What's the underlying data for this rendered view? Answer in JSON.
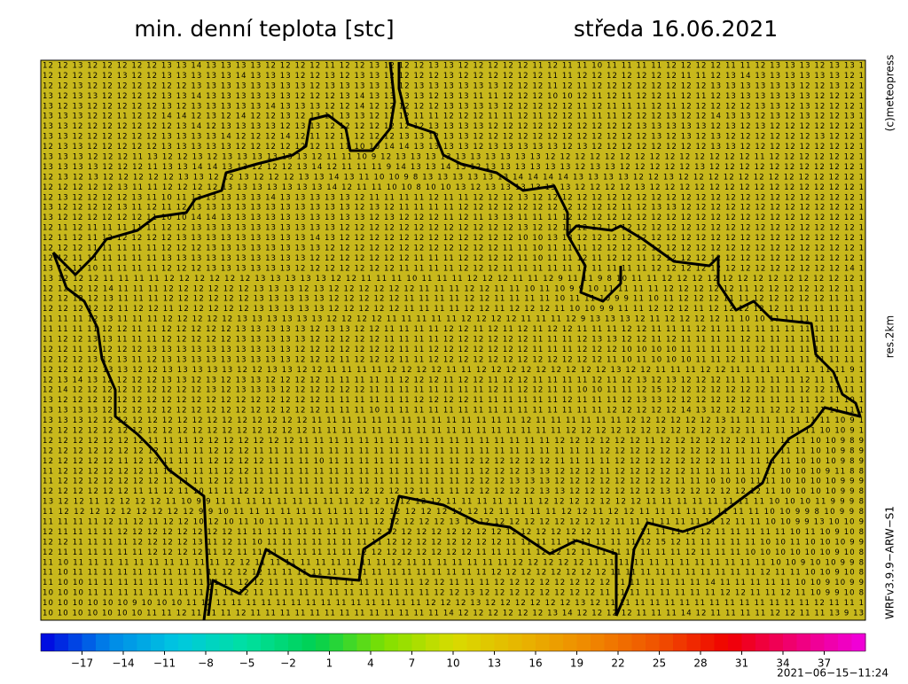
{
  "header": {
    "title": "min. denní teplota [stc]",
    "date": "středa 16.06.2021"
  },
  "side_labels": {
    "copyright": "(c)meteopress",
    "resolution": "res.2km",
    "model": "WRFv3.9.9−ARW−S1"
  },
  "timestamp": "2021−06−15−11:24",
  "map": {
    "background": "#c8b81c",
    "border_color": "#000000",
    "rows": [
      "12 12 13 12 12 12 12 12 13 13 14 13 13 13 13 12 12 12 12 11 12 12 13 12 12 12 13 13 12 12 12 12 12 11 12 11 11 10 11 11 11 11 12 12 12 12 11 11 12 13 13 13 12 13 13 1",
      "12 12 12 12 12 13 12 12 13 13 13 13 13 14 13 13 13 12 12 13 12 13 13 12 12 12 12 13 12 12 12 12 12 12 11 11 12 12 12 12 12 12 12 11 11 12 13 14 13 13 13 13 13 13 12 1",
      "12 12 13 12 12 12 12 12 12 12 13 13 13 13 13 13 13 13 12 13 13 13 13 13 12 13 13 13 13 13 13 12 12 12 11 12 11 12 12 12 12 12 12 12 12 13 13 13 13 13 13 12 12 13 12 1",
      "13 12 13 13 12 12 12 12 13 13 14 13 13 13 13 13 13 12 12 12 13 14 13 13 13 13 12 13 13 11 11 12 12 12 10 10 12 11 12 11 12 12 11 12 11 12 13 13 13 13 13 13 12 12 12 1",
      "13 12 13 12 12 12 12 12 13 12 13 13 13 13 13 14 13 13 13 12 12 14 12 12 12 12 12 13 13 13 13 12 12 12 12 12 11 12 11 11 11 12 11 12 12 12 12 12 13 13 12 13 12 12 12 1",
      "13 13 13 12 12 11 12 12 14 14 12 13 12 14 12 12 13 12 13 11 13 13 12 12 12 11 11 12 12 12 11 11 12 11 12 12 11 11 11 12 12 12 13 12 12 14 13 13 12 13 12 13 12 12 13 1",
      "13 13 12 12 12 12 12 12 12 13 14 12 13 13 13 13 12 13 13 12 12 12 12 12 12 12 13 13 13 13 12 12 12 12 12 12 12 12 12 12 13 13 13 13 13 12 13 12 13 12 12 12 12 12 12 1",
      "13 13 12 12 12 12 12 12 13 13 13 13 14 12 12 12 14 12 11 12 11 12 12 12 13 13 12 13 13 12 12 12 12 12 12 12 12 12 12 12 12 13 12 13 12 13 12 12 12 12 12 12 13 12 12 1",
      "12 13 13 12 12 12 12 12 13 13 13 13 13 12 12 12 12 12 12 11 11 10 10 14 14 13 13 13 13 12 13 13 13 13 13 12 13 12 12 12 12 12 12 12 12 13 13 12 12 12 12 12 12 12 12 1",
      "13 13 13 12 12 12 11 13 12 12 13 12 13 13 13 13 13 13 12 11 11 10 9 12 13 13 13 13 13 13 13 13 13 13 12 12 12 12 12 12 12 12 12 12 12 12 12 12 11 12 12 12 12 12 12 1",
      "13 13 13 13 12 12 12 11 13 13 14 14 13 13 12 12 12 13 14 12 11 11 11 9 14 13 13 14 13 12 13 13 13 13 13 13 12 13 13 12 12 12 12 12 13 12 12 12 12 12 12 12 12 12 12 1",
      "12 13 12 13 12 12 12 12 12 13 13 12 12 13 12 12 12 13 13 14 13 11 10 10 9 8 13 13 13 13 13 13 14 14 14 14 13 13 13 13 12 12 13 12 12 12 12 12 12 12 12 12 12 12 12 1",
      "12 12 12 12 12 13 11 11 12 12 12 12 13 13 13 13 13 13 13 14 12 11 11 10 10 8 10 10 13 12 13 13 13 13 13 13 12 12 12 12 13 12 12 12 12 12 12 12 12 12 12 12 12 12 12 1",
      "12 13 12 12 12 12 13 11 10 11 13 13 13 13 13 14 13 13 13 13 13 12 11 11 11 11 12 11 11 12 12 12 13 12 12 12 12 12 12 12 12 12 12 12 12 12 12 12 12 12 12 12 12 12 12 1",
      "13 12 12 12 12 13 11 12 11 12 13 13 13 13 13 13 13 13 13 13 13 12 13 12 11 11 11 11 12 12 12 12 12 12 12 12 12 12 12 11 12 13 13 12 12 12 12 12 12 12 12 12 12 12 12 1",
      "13 12 12 12 12 12 12 11 10 10 14 14 13 13 13 13 13 13 13 13 13 13 12 13 12 12 12 11 12 11 13 13 11 11 11 12 12 12 12 12 12 12 12 12 12 12 12 12 12 12 12 12 12 12 12 1",
      "12 11 12 11 11 11 11 11 12 12 13 13 13 13 13 13 13 13 13 13 12 12 12 12 12 12 12 12 12 12 12 12 13 12 12 11 12 12 12 12 12 12 12 12 12 12 12 12 12 12 12 12 12 12 12 1",
      "12 11 12 11 12 12 12 12 12 13 13 13 13 13 13 13 13 13 14 13 12 12 12 12 12 12 12 12 12 12 12 12 10 10 13 13 12 12 12 12 12 12 12 12 12 12 12 12 12 12 12 12 12 12 12 1",
      "12 12 12 11 11 11 11 11 12 12 12 13 13 13 13 13 13 13 13 12 12 12 12 12 12 12 12 12 12 12 12 11 11 10 11 11 11 12 12 12 12 12 12 12 12 12 12 12 12 12 12 12 12 12 12 1",
      "12 12 11 11 11 11 11 11 13 13 13 13 13 13 13 13 13 13 12 12 12 12 12 12 12 11 11 11 12 12 12 12 11 10 11 11 12 11 12 12 11 12 12 12 12 12 12 12 12 12 12 12 12 12 12 1",
      "13 12 11 10 11 11 11 11 12 12 12 13 13 13 13 13 13 12 12 12 12 12 12 12 11 11 11 11 12 12 12 11 11 11 11 11 12 11 11 11 11 12 12 12 12 12 12 12 12 12 12 12 12 12 14 1",
      "13 12 12 12 11 11 11 11 12 12 12 12 12 12 13 13 13 13 13 12 12 11 11 11 10 11 11 11 12 12 12 11 11 12 9 11 11 9 8 10 11 11 12 12 12 12 12 12 12 12 12 12 12 12 12 1",
      "12 12 12 12 14 11 11 11 12 12 12 12 12 12 13 13 13 12 13 12 12 12 12 12 12 11 11 11 12 12 11 11 10 11 10 9 9 10 11 11 11 11 12 12 12 12 12 11 12 12 12 12 12 12 11 1",
      "12 12 12 12 13 11 11 11 12 12 12 12 12 12 13 13 13 13 13 12 12 12 12 12 11 11 11 11 12 12 11 11 11 11 10 11 11 10 9 9 11 10 11 12 12 12 11 11 12 12 12 12 12 11 11 1",
      "12 12 12 12 12 11 12 12 11 12 12 12 12 12 13 13 13 13 13 12 12 12 12 12 11 11 11 11 12 12 11 12 12 12 11 10 10 9 9 11 11 12 12 12 11 12 12 12 12 12 11 11 11 11 11 1",
      "11 11 11 12 13 11 11 11 12 12 12 12 12 13 13 13 13 13 13 12 12 12 12 11 11 11 11 11 12 12 12 12 11 11 11 12 9 13 13 13 12 11 12 12 12 12 11 10 10 11 11 11 11 11 11 1",
      "11 11 11 11 12 12 11 11 12 12 12 12 12 13 13 13 13 13 12 13 13 12 12 11 11 11 11 12 12 11 12 11 12 11 12 12 11 11 11 12 12 11 11 11 12 11 11 11 11 11 11 11 11 11 11 1",
      "11 12 12 13 13 11 11 11 12 12 12 12 12 13 13 13 13 13 12 12 12 12 12 11 11 11 11 12 12 12 12 12 12 11 11 11 12 13 13 12 12 11 12 11 11 11 11 12 11 11 11 11 11 11 11 1",
      "12 12 11 12 12 12 12 13 13 13 13 13 13 13 13 13 13 12 12 12 12 12 12 12 11 11 12 12 12 12 12 12 12 11 11 11 12 12 12 10 10 10 10 11 11 11 11 11 12 11 11 11 11 11 11 1",
      "12 12 12 13 12 13 11 12 13 13 13 13 13 13 13 13 13 12 12 12 11 12 12 12 11 11 12 12 12 12 12 12 12 12 12 12 12 12 11 10 11 10 10 10 11 11 12 11 11 11 11 11 11 11 11 1",
      "12 12 12 12 13 13 12 12 13 13 13 13 13 12 12 13 13 12 12 11 11 11 11 12 12 12 12 11 11 12 12 12 12 12 12 12 12 12 13 12 12 11 11 11 12 12 11 11 11 11 11 11 11 11 9 1",
      "12 13 14 13 12 12 12 12 13 13 12 13 12 13 13 12 12 12 12 11 11 11 11 11 12 12 12 11 12 12 11 12 12 11 11 11 11 12 11 12 13 12 13 12 12 12 11 11 11 11 11 12 11 11 11 1",
      "12 14 12 12 12 12 12 12 12 12 12 13 12 13 13 13 12 12 12 12 12 12 11 11 11 11 11 11 11 11 12 11 12 12 11 11 10 10 11 11 12 15 12 12 12 12 12 12 12 11 11 12 12 11 11 1",
      "13 12 12 12 12 12 12 12 12 12 12 12 12 12 12 12 12 12 12 11 11 11 11 11 11 12 12 12 12 11 11 11 11 11 11 12 11 11 11 12 13 13 12 12 12 12 12 12 11 11 11 11 12 11 10 1",
      "13 13 13 13 12 12 12 12 12 12 12 12 12 12 12 12 12 12 12 11 11 11 10 11 11 11 11 11 11 11 11 11 11 11 11 11 11 11 12 12 12 12 12 14 13 12 12 12 11 12 12 11 11 11 11 1",
      "13 13 13 12 12 12 12 12 12 12 12 12 12 12 12 12 12 12 11 11 11 11 11 11 11 11 11 11 11 11 11 11 12 11 11 11 11 11 11 12 12 12 12 12 12 13 11 11 11 11 11 11 11 10 9 1",
      "12 12 12 12 12 12 12 12 12 12 12 12 12 12 12 12 12 12 11 11 11 11 11 11 11 11 11 11 11 11 11 11 11 11 11 12 12 12 12 12 12 12 12 12 12 12 12 11 11 11 11 11 10 10 9 1",
      "12 12 12 12 12 12 12 11 11 11 12 12 12 12 12 12 12 11 11 11 11 11 11 11 11 11 11 11 11 11 11 11 11 11 12 12 12 12 12 12 11 12 12 12 12 12 12 11 11 11 11 10 10 9 8 9",
      "12 12 12 12 12 12 12 12 11 11 11 12 12 12 11 11 11 11 11 11 11 11 11 11 11 11 11 11 11 11 11 11 11 11 11 11 11 12 12 12 12 12 12 12 12 11 11 11 11 11 11 10 10 9 8 9",
      "12 12 12 12 12 11 12 12 11 11 11 12 12 12 12 11 11 11 10 11 11 11 11 11 11 11 11 11 12 12 12 12 12 12 11 11 11 11 12 12 12 12 12 12 12 11 11 11 11 11 10 10 10 9 8 9",
      "11 12 12 12 12 12 12 11 11 11 11 11 12 12 11 11 11 11 11 11 11 11 11 11 11 11 11 11 11 12 12 12 13 13 12 12 12 11 12 12 12 12 12 11 11 11 11 11 11 10 10 10 9 11 8 8",
      "11 12 12 12 12 12 12 12 11 11 11 12 12 11 11 11 11 11 11 11 11 11 11 11 11 11 11 11 12 12 12 13 13 13 12 12 12 12 12 12 12 12 11 11 10 10 10 11 11 10 10 10 10 9 9 9",
      "12 12 12 12 12 12 11 11 12 11 10 11 11 12 12 11 11 11 11 11 12 12 12 12 12 11 11 11 12 12 12 12 12 13 13 12 12 12 12 12 12 13 12 12 12 12 12 12 11 10 10 10 10 9 9 8",
      "13 12 12 11 12 12 12 12 11 10 9 9 11 11 11 11 11 11 11 11 11 12 12 12 12 12 12 11 11 11 11 11 11 12 12 12 12 12 12 12 11 11 11 11 11 11 11 11 10 10 10 11 9 9 9 8",
      "11 12 12 12 12 12 12 12 12 12 9 9 10 11 11 11 11 11 11 11 11 11 12 12 12 12 12 12 12 12 11 11 11 11 12 12 11 12 12 11 11 11 11 11 11 11 11 10 10 9 9 8 10 9 9 8",
      "11 11 11 11 12 11 12 11 12 12 10 12 10 11 10 11 11 11 11 11 11 11 12 12 12 12 12 13 13 12 12 12 12 12 12 12 12 12 11 11 11 11 11 11 11 12 11 11 10 10 9 9 13 10 10 9",
      "12 11 11 11 11 12 12 12 12 12 12 12 12 11 11 11 11 11 11 11 11 11 12 12 12 12 12 12 12 12 12 12 12 12 12 12 12 11 11 11 11 11 11 12 12 11 11 11 11 11 10 11 10 9 10 8",
      "12 12 11 11 11 11 12 12 12 12 13 11 12 11 10 11 11 11 11 11 11 11 11 12 12 12 12 12 12 12 12 11 11 11 11 11 11 11 11 11 12 15 12 11 11 11 11 11 10 10 11 10 10 10 9 9",
      "12 11 11 11 11 11 11 12 12 12 12 11 12 11 11 11 11 11 11 11 11 12 12 12 12 12 12 12 12 11 11 11 11 12 12 12 11 11 11 11 11 11 11 12 11 11 11 10 10 10 10 10 10 9 10 8",
      "11 10 11 11 11 11 11 11 11 11 11 11 12 12 11 11 11 11 11 11 11 11 11 12 11 11 11 11 11 11 11 12 12 12 12 12 11 11 11 11 11 11 11 11 11 11 11 11 10 10 9 10 10 9 9 8",
      "11 10 11 11 11 11 11 11 11 11 11 11 12 12 12 11 11 11 11 11 11 11 11 11 11 11 11 11 11 11 12 12 12 12 12 12 12 12 11 11 11 11 11 11 11 11 11 11 12 11 11 10 10 9 10 8",
      "11 10 10 11 11 11 11 11 11 11 11 11 11 12 12 11 11 11 11 11 11 11 11 11 11 12 12 11 11 11 12 12 12 12 12 12 12 12 11 11 11 11 11 11 14 11 11 11 11 11 10 10 9 10 9 9",
      "10 10 10 11 11 11 11 11 11 11 11 11 11 12 11 11 11 11 11 11 11 11 11 11 11 11 12 12 13 12 12 12 12 12 12 12 12 11 11 11 11 11 11 11 11 12 12 11 11 12 11 10 9 9 10 8",
      "10 10 10 10 10 10 9 10 10 10 11 12 11 11 11 11 11 11 11 11 11 11 11 11 11 11 12 12 12 13 12 12 12 12 12 12 13 12 11 11 11 11 11 11 11 11 11 11 11 11 11 11 12 11 11 1",
      "10 10 10 10 10 10 10 11 11 12 11 11 11 12 11 11 11 11 11 11 11 11 11 11 11 11 11 14 12 12 12 12 12 12 13 14 12 12 12 12 11 11 11 14 12 11 11 11 11 12 12 11 11 13 9 13"
    ]
  },
  "colorbar": {
    "lim": [
      -20,
      40
    ],
    "stops": [
      "#0000e0",
      "#0088e8",
      "#00c8e0",
      "#00e0a0",
      "#00d050",
      "#80e000",
      "#d8dc00",
      "#e8b400",
      "#f08800",
      "#f05000",
      "#f00000",
      "#f00078",
      "#f000e0"
    ],
    "ticks": [
      {
        "value": -17,
        "label": "−17"
      },
      {
        "value": -14,
        "label": "−14"
      },
      {
        "value": -11,
        "label": "−11"
      },
      {
        "value": -8,
        "label": "−8"
      },
      {
        "value": -5,
        "label": "−5"
      },
      {
        "value": -2,
        "label": "−2"
      },
      1,
      4,
      7,
      10,
      13,
      16,
      19,
      22,
      25,
      28,
      31,
      34,
      37
    ]
  }
}
